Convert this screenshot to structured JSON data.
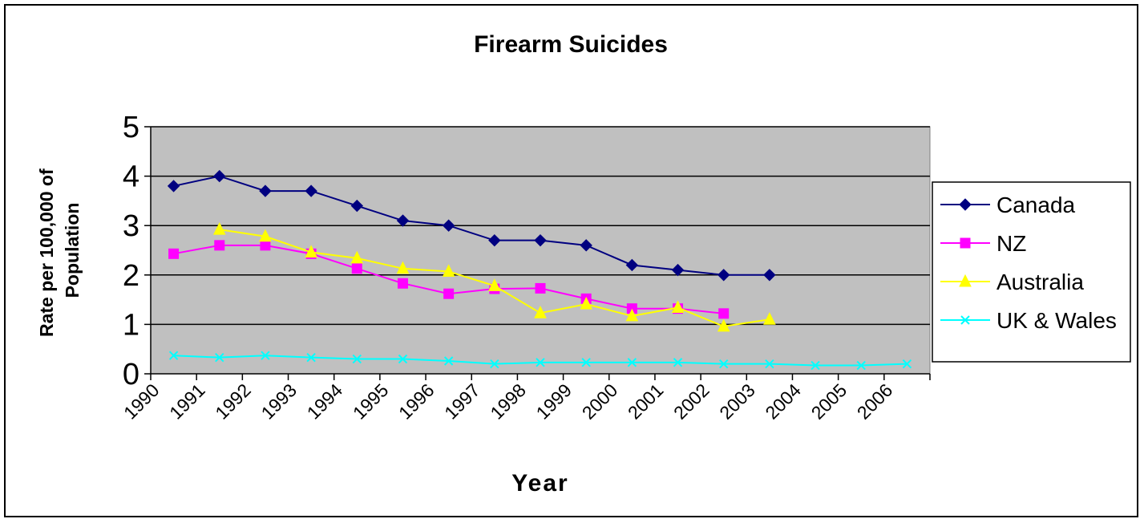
{
  "chart_data": {
    "type": "line",
    "title": "Firearm Suicides",
    "xlabel": "Year",
    "ylabel": "Rate per 100,000 of Population",
    "categories": [
      "1990",
      "1991",
      "1992",
      "1993",
      "1994",
      "1995",
      "1996",
      "1997",
      "1998",
      "1999",
      "2000",
      "2001",
      "2002",
      "2003",
      "2004",
      "2005",
      "2006"
    ],
    "ylim": [
      0,
      5
    ],
    "yticks": [
      "0",
      "1",
      "2",
      "3",
      "4",
      "5"
    ],
    "grid": true,
    "legend_position": "right",
    "plot_background": "#C0C0C0",
    "series": [
      {
        "name": "Canada",
        "color": "#000080",
        "marker": "diamond",
        "values": [
          3.8,
          4.0,
          3.7,
          3.7,
          3.4,
          3.1,
          3.0,
          2.7,
          2.7,
          2.6,
          2.2,
          2.1,
          2.0,
          2.0,
          null,
          null,
          null
        ]
      },
      {
        "name": "NZ",
        "color": "#FF00FF",
        "marker": "square",
        "values": [
          2.43,
          2.6,
          2.6,
          2.43,
          2.13,
          1.83,
          1.62,
          1.72,
          1.73,
          1.52,
          1.32,
          1.32,
          1.22,
          null,
          null,
          null,
          null
        ]
      },
      {
        "name": "Australia",
        "color": "#FFFF00",
        "marker": "triangle",
        "values": [
          null,
          2.92,
          2.78,
          2.46,
          2.34,
          2.13,
          2.07,
          1.78,
          1.23,
          1.41,
          1.17,
          1.34,
          0.96,
          1.1,
          null,
          null,
          null
        ]
      },
      {
        "name": "UK & Wales",
        "color": "#00FFFF",
        "marker": "x",
        "values": [
          0.37,
          0.33,
          0.37,
          0.33,
          0.3,
          0.3,
          0.26,
          0.2,
          0.23,
          0.23,
          0.23,
          0.23,
          0.2,
          0.2,
          0.17,
          0.17,
          0.2
        ]
      }
    ]
  }
}
